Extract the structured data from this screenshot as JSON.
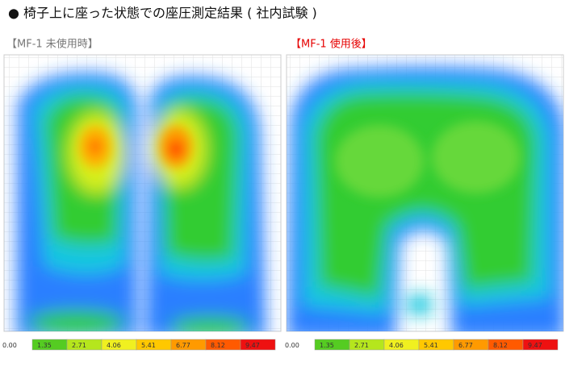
{
  "title": "● 椅子上に座った状態での座圧測定結果 ( 社内試験 )",
  "panels": [
    {
      "label": "【MF-1 未使用時】",
      "color": "#777777"
    },
    {
      "label": "【MF-1 使用後】",
      "color": "#e60000"
    }
  ],
  "scale": {
    "start": "0.00",
    "steps": [
      {
        "label": "1.35",
        "color": "#55cc22"
      },
      {
        "label": "2.71",
        "color": "#b5e61d"
      },
      {
        "label": "4.06",
        "color": "#f0f020"
      },
      {
        "label": "5.41",
        "color": "#ffc800"
      },
      {
        "label": "6.77",
        "color": "#ff9a00"
      },
      {
        "label": "8.12",
        "color": "#ff5a00"
      },
      {
        "label": "9.47",
        "color": "#ee1111"
      }
    ]
  }
}
